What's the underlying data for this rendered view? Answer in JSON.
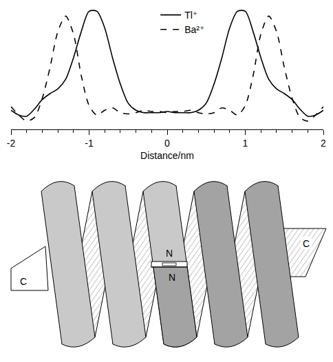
{
  "chart_data": {
    "type": "line",
    "x_label": "Distance/nm",
    "x": [
      -2,
      -1.9,
      -1.8,
      -1.7,
      -1.6,
      -1.5,
      -1.4,
      -1.3,
      -1.2,
      -1.1,
      -1,
      -0.9,
      -0.8,
      -0.7,
      -0.6,
      -0.5,
      -0.4,
      -0.3,
      -0.2,
      -0.1,
      0,
      0.1,
      0.2,
      0.3,
      0.4,
      0.5,
      0.6,
      0.7,
      0.8,
      0.9,
      1,
      1.1,
      1.2,
      1.3,
      1.4,
      1.5,
      1.6,
      1.7,
      1.8,
      1.9,
      2
    ],
    "series": [
      {
        "name": "Tl⁺",
        "color": "#000000",
        "line_style": "solid",
        "values": [
          0.16,
          0.12,
          0.11,
          0.17,
          0.25,
          0.3,
          0.34,
          0.42,
          0.6,
          0.82,
          0.99,
          0.99,
          0.85,
          0.6,
          0.38,
          0.22,
          0.16,
          0.14,
          0.14,
          0.14,
          0.15,
          0.14,
          0.14,
          0.14,
          0.16,
          0.22,
          0.38,
          0.6,
          0.85,
          0.99,
          0.99,
          0.82,
          0.6,
          0.42,
          0.34,
          0.3,
          0.25,
          0.17,
          0.11,
          0.12,
          0.16
        ]
      },
      {
        "name": "Ba²⁺",
        "color": "#000000",
        "line_style": "dashed",
        "values": [
          0.19,
          0.12,
          0.07,
          0.1,
          0.26,
          0.52,
          0.82,
          0.95,
          0.8,
          0.45,
          0.2,
          0.12,
          0.16,
          0.18,
          0.14,
          0.13,
          0.14,
          0.16,
          0.15,
          0.15,
          0.14,
          0.15,
          0.15,
          0.16,
          0.14,
          0.13,
          0.14,
          0.18,
          0.16,
          0.12,
          0.2,
          0.45,
          0.8,
          0.95,
          0.82,
          0.52,
          0.26,
          0.1,
          0.07,
          0.12,
          0.19
        ]
      }
    ],
    "xlim": [
      -2,
      2
    ],
    "xticks": [
      -2,
      -1,
      0,
      1,
      2
    ],
    "ylim": [
      0,
      1.05
    ],
    "yticks": [],
    "tick_labels": "x",
    "grid": false,
    "legend": "top"
  },
  "diagram": {
    "labels": {
      "left_end": "C",
      "upper_middle": "N",
      "lower_middle": "N",
      "right_end": "C"
    }
  }
}
